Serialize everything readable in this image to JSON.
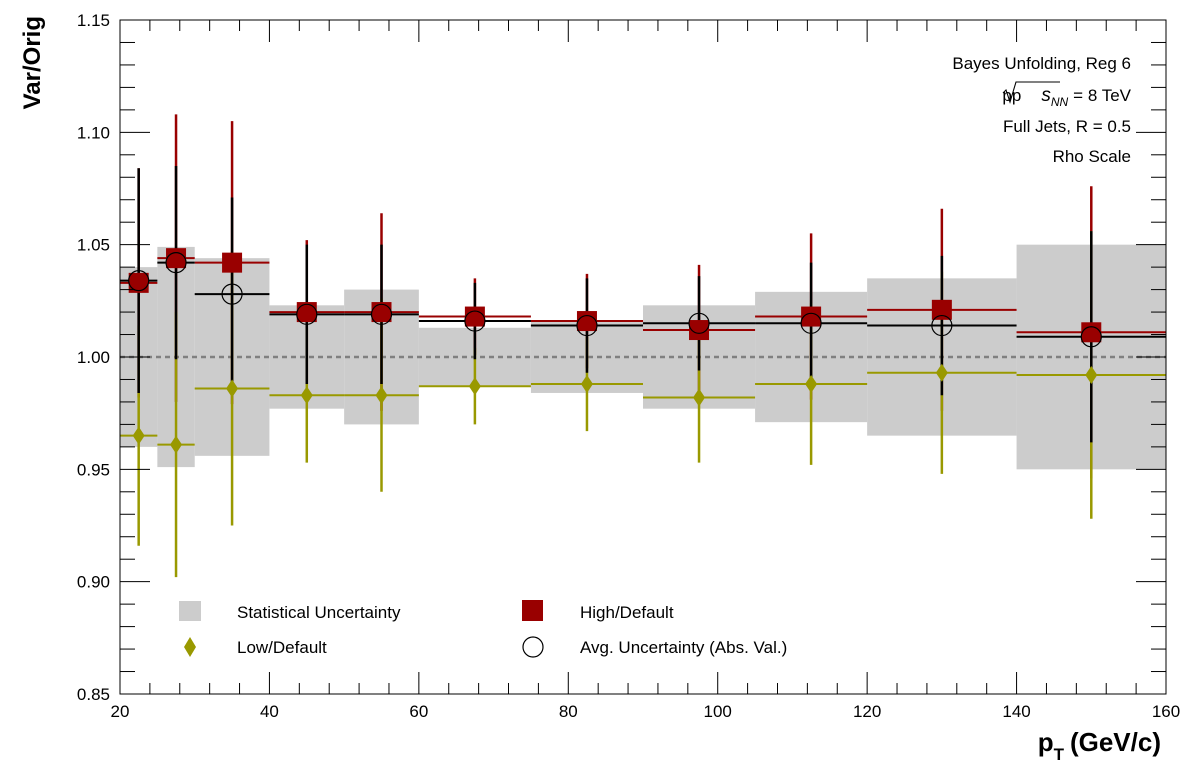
{
  "chart_data": {
    "type": "scatter",
    "xlabel": "p",
    "xlabel_sub": "T",
    "xlabel_units": "(GeV/c)",
    "ylabel": "Var/Orig",
    "xlim": [
      20,
      160
    ],
    "ylim": [
      0.85,
      1.15
    ],
    "x_ticks": [
      "20",
      "40",
      "60",
      "80",
      "100",
      "120",
      "140",
      "160"
    ],
    "y_ticks": [
      "0.85",
      "0.90",
      "0.95",
      "1.00",
      "1.05",
      "1.10",
      "1.15"
    ],
    "reference_line": 1.0,
    "info_lines": {
      "line1": "Bayes Unfolding, Reg 6",
      "line2_prefix": "pp",
      "line2_s": "s",
      "line2_sub": "NN",
      "line2_suffix": "= 8 TeV",
      "line3": "Full Jets, R = 0.5",
      "line4": "Rho Scale"
    },
    "bins": [
      {
        "lo": 20,
        "hi": 25,
        "x": 22.5
      },
      {
        "lo": 25,
        "hi": 30,
        "x": 27.5
      },
      {
        "lo": 30,
        "hi": 40,
        "x": 35
      },
      {
        "lo": 40,
        "hi": 50,
        "x": 45
      },
      {
        "lo": 50,
        "hi": 60,
        "x": 55
      },
      {
        "lo": 60,
        "hi": 75,
        "x": 67.5
      },
      {
        "lo": 75,
        "hi": 90,
        "x": 82.5
      },
      {
        "lo": 90,
        "hi": 105,
        "x": 97.5
      },
      {
        "lo": 105,
        "hi": 120,
        "x": 112.5
      },
      {
        "lo": 120,
        "hi": 140,
        "x": 130
      },
      {
        "lo": 140,
        "hi": 160,
        "x": 150
      }
    ],
    "series": [
      {
        "name": "Statistical Uncertainty",
        "kind": "band",
        "color": "#cccccc",
        "values": [
          0.04,
          0.049,
          0.044,
          0.023,
          0.03,
          0.013,
          0.016,
          0.023,
          0.029,
          0.035,
          0.05
        ]
      },
      {
        "name": "High/Default",
        "kind": "square",
        "color": "#990000",
        "values": [
          1.033,
          1.044,
          1.042,
          1.02,
          1.02,
          1.018,
          1.016,
          1.012,
          1.018,
          1.021,
          1.011
        ],
        "errors": [
          0.051,
          0.064,
          0.063,
          0.032,
          0.044,
          0.017,
          0.021,
          0.029,
          0.037,
          0.045,
          0.065
        ]
      },
      {
        "name": "Low/Default",
        "kind": "diamond",
        "color": "#999900",
        "values": [
          0.965,
          0.961,
          0.986,
          0.983,
          0.983,
          0.987,
          0.988,
          0.982,
          0.988,
          0.993,
          0.992
        ],
        "errors": [
          0.049,
          0.059,
          0.061,
          0.03,
          0.043,
          0.017,
          0.021,
          0.029,
          0.036,
          0.045,
          0.064
        ]
      },
      {
        "name": "Avg. Uncertainty (Abs. Val.)",
        "kind": "circle",
        "color": "#000000",
        "values": [
          1.034,
          1.042,
          1.028,
          1.019,
          1.019,
          1.016,
          1.014,
          1.015,
          1.015,
          1.014,
          1.009
        ],
        "errors": [
          0.05,
          0.043,
          0.043,
          0.031,
          0.031,
          0.017,
          0.021,
          0.021,
          0.027,
          0.031,
          0.047
        ]
      }
    ],
    "legend_position": "bottom-left"
  }
}
